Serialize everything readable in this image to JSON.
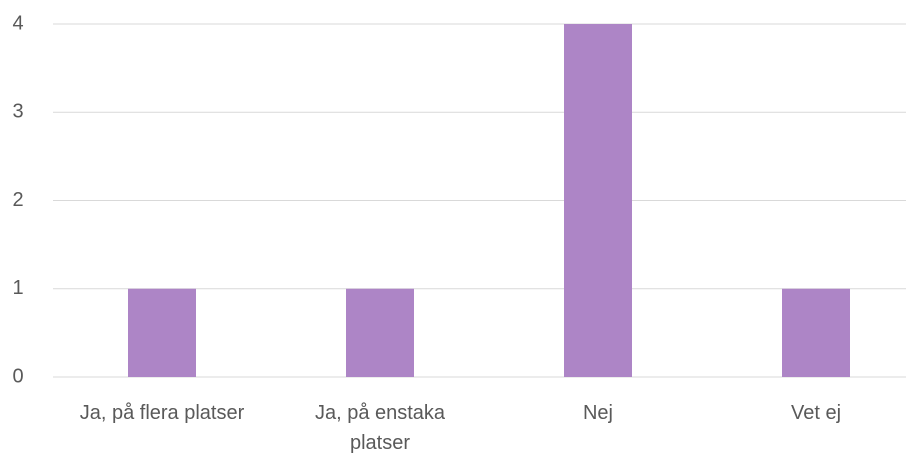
{
  "chart_data": {
    "type": "bar",
    "categories": [
      "Ja, på flera platser",
      "Ja, på enstaka platser",
      "Nej",
      "Vet ej"
    ],
    "values": [
      1,
      1,
      4,
      1
    ],
    "color": "#ad85c6",
    "ylim": [
      0,
      4
    ],
    "yticks": [
      0,
      1,
      2,
      3,
      4
    ],
    "grid": true
  }
}
